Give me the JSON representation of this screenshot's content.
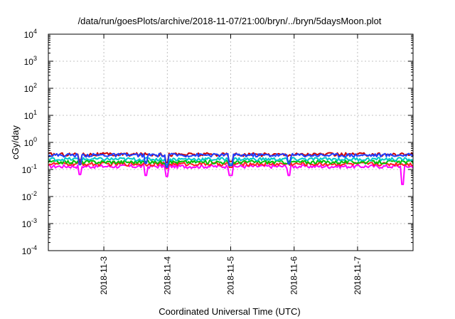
{
  "chart_data": {
    "type": "line",
    "title": "/data/run/goesPlots/archive/2018-11-07/21:00/bryn/../bryn/5daysMoon.plot",
    "xlabel": "Coordinated Universal Time (UTC)",
    "ylabel": "cGy/day",
    "yscale": "log",
    "ylim": [
      0.0001,
      10000
    ],
    "y_tick_exponents": [
      "-4",
      "-3",
      "-2",
      "-1",
      "0",
      "1",
      "2",
      "3",
      "4"
    ],
    "y_tick_base": "10",
    "xlim": [
      "2018-11-02T03:00",
      "2018-11-07T21:00"
    ],
    "x_ticks": [
      "2018-11-3",
      "2018-11-4",
      "2018-11-5",
      "2018-11-6",
      "2018-11-7"
    ],
    "grid": true,
    "legend": "none",
    "series": [
      {
        "color": "#ff00ff",
        "level": 0.13,
        "dips": [
          [
            "2018-11-02T15:00",
            0.065
          ],
          [
            "2018-11-03T16:00",
            0.06
          ],
          [
            "2018-11-04T00:00",
            0.055
          ],
          [
            "2018-11-05T00:00",
            0.06
          ],
          [
            "2018-11-05T22:00",
            0.06
          ],
          [
            "2018-11-07T17:00",
            0.028
          ]
        ]
      },
      {
        "color": "#ff2020",
        "level": 0.16,
        "dips": [
          [
            "2018-11-04T00:00",
            0.11
          ],
          [
            "2018-11-05T00:00",
            0.12
          ]
        ]
      },
      {
        "color": "#00c000",
        "level": 0.19,
        "dips": [
          [
            "2018-11-04T00:00",
            0.13
          ],
          [
            "2018-11-05T00:00",
            0.14
          ]
        ]
      },
      {
        "color": "#00c8c8",
        "level": 0.24,
        "dips": [
          [
            "2018-11-04T00:00",
            0.15
          ],
          [
            "2018-11-05T00:00",
            0.16
          ],
          [
            "2018-11-05T22:00",
            0.17
          ]
        ]
      },
      {
        "color": "#cc0000",
        "level": 0.36,
        "dips": [
          [
            "2018-11-02T15:00",
            0.2
          ],
          [
            "2018-11-04T00:00",
            0.18
          ],
          [
            "2018-11-05T00:00",
            0.2
          ]
        ]
      },
      {
        "color": "#2040ff",
        "level": 0.34,
        "dips": [
          [
            "2018-11-02T15:00",
            0.15
          ],
          [
            "2018-11-03T16:00",
            0.17
          ],
          [
            "2018-11-04T00:00",
            0.12
          ],
          [
            "2018-11-05T00:00",
            0.14
          ],
          [
            "2018-11-05T22:00",
            0.16
          ]
        ]
      }
    ]
  }
}
